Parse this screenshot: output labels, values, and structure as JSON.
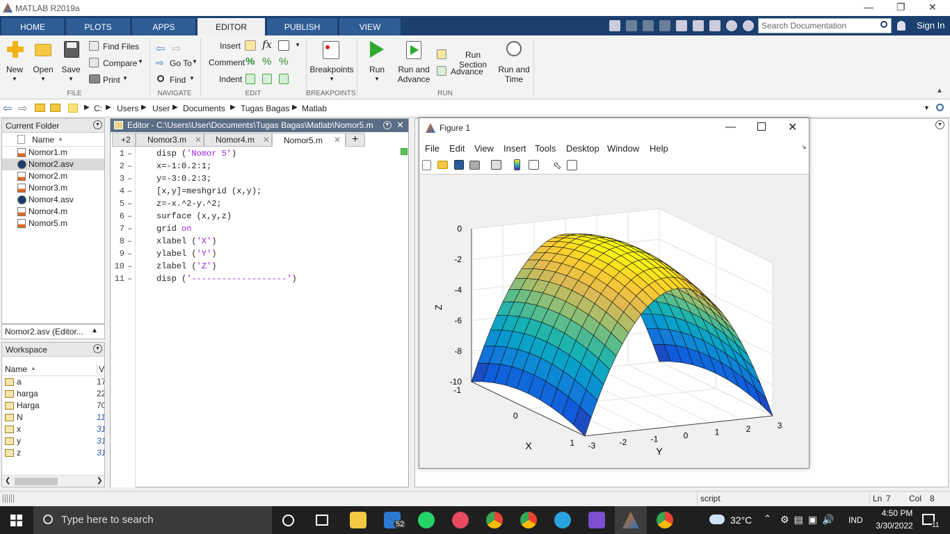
{
  "window": {
    "title": "MATLAB R2019a"
  },
  "ribbon": {
    "tabs": [
      "HOME",
      "PLOTS",
      "APPS",
      "EDITOR",
      "PUBLISH",
      "VIEW"
    ],
    "active_tab": "EDITOR",
    "search_placeholder": "Search Documentation",
    "sign_in": "Sign In",
    "file": {
      "new": "New",
      "open": "Open",
      "save": "Save",
      "find_files": "Find Files",
      "compare": "Compare",
      "print": "Print",
      "group": "FILE"
    },
    "navigate": {
      "go_to": "Go To",
      "find": "Find",
      "group": "NAVIGATE"
    },
    "edit": {
      "insert": "Insert",
      "comment": "Comment",
      "indent": "Indent",
      "group": "EDIT"
    },
    "breakpoints": {
      "label": "Breakpoints",
      "group": "BREAKPOINTS"
    },
    "run": {
      "run": "Run",
      "run_advance_1": "Run and",
      "run_advance_2": "Advance",
      "run_section": "Run Section",
      "advance": "Advance",
      "run_time_1": "Run and",
      "run_time_2": "Time",
      "group": "RUN"
    }
  },
  "address": {
    "path": [
      "C:",
      "Users",
      "User",
      "Documents",
      "Tugas Bagas",
      "Matlab"
    ]
  },
  "current_folder": {
    "title": "Current Folder",
    "col_name": "Name",
    "files": [
      "Nomor1.m",
      "Nomor2.asv",
      "Nomor2.m",
      "Nomor3.m",
      "Nomor4.asv",
      "Nomor4.m",
      "Nomor5.m"
    ],
    "selected": "Nomor2.asv",
    "details": "Nomor2.asv  (Editor..."
  },
  "workspace": {
    "title": "Workspace",
    "col_name": "Name",
    "col_value": "Va",
    "vars": [
      {
        "name": "a",
        "value": "17"
      },
      {
        "name": "harga",
        "value": "22"
      },
      {
        "name": "Harga",
        "value": "70"
      },
      {
        "name": "N",
        "value": "11"
      },
      {
        "name": "x",
        "value": "31"
      },
      {
        "name": "y",
        "value": "31"
      },
      {
        "name": "z",
        "value": "31"
      }
    ]
  },
  "editor": {
    "title": "Editor - C:\\Users\\User\\Documents\\Tugas Bagas\\Matlab\\Nomor5.m",
    "tab_overflow": "+2",
    "tabs": [
      "Nomor3.m",
      "Nomor4.m",
      "Nomor5.m"
    ],
    "active_tab": "Nomor5.m",
    "lines": [
      {
        "n": "1",
        "pre": "disp (",
        "str": "'Nomor 5'",
        "post": ")"
      },
      {
        "n": "2",
        "pre": "x=-1:0.2:1;",
        "str": "",
        "post": ""
      },
      {
        "n": "3",
        "pre": "y=-3:0.2:3;",
        "str": "",
        "post": ""
      },
      {
        "n": "4",
        "pre": "[x,y]=meshgrid (x,y);",
        "str": "",
        "post": ""
      },
      {
        "n": "5",
        "pre": "z=-x.^2-y.^2;",
        "str": "",
        "post": ""
      },
      {
        "n": "6",
        "pre": "surface (x,y,z)",
        "str": "",
        "post": ""
      },
      {
        "n": "7",
        "pre": "grid ",
        "str": "on",
        "post": ""
      },
      {
        "n": "8",
        "pre": "xlabel (",
        "str": "'X'",
        "post": ")"
      },
      {
        "n": "9",
        "pre": "ylabel (",
        "str": "'Y'",
        "post": ")"
      },
      {
        "n": "10",
        "pre": "zlabel (",
        "str": "'Z'",
        "post": ")"
      },
      {
        "n": "11",
        "pre": "disp (",
        "str": "'-------------------'",
        "post": ")"
      }
    ]
  },
  "figure": {
    "title": "Figure 1",
    "menu": [
      "File",
      "Edit",
      "View",
      "Insert",
      "Tools",
      "Desktop",
      "Window",
      "Help"
    ],
    "plot": {
      "zlabel": "Z",
      "xlabel": "X",
      "ylabel": "Y",
      "z_ticks": [
        "0",
        "-2",
        "-4",
        "-6",
        "-8",
        "-10"
      ],
      "x_ticks": [
        "-1",
        "0",
        "1"
      ],
      "y_ticks": [
        "-3",
        "-2",
        "-1",
        "0",
        "1",
        "2",
        "3"
      ]
    }
  },
  "chart_data": {
    "type": "surface",
    "title": "",
    "xlabel": "X",
    "ylabel": "Y",
    "zlabel": "Z",
    "x_range": [
      -1,
      1
    ],
    "x_step": 0.2,
    "y_range": [
      -3,
      3
    ],
    "y_step": 0.2,
    "z_range": [
      -10,
      0
    ],
    "function": "z=-x.^2-y.^2",
    "grid": true,
    "colormap": "parula"
  },
  "statusbar": {
    "mode": "script",
    "ln": "Ln",
    "ln_val": "7",
    "col": "Col",
    "col_val": "8"
  },
  "taskbar": {
    "search_placeholder": "Type here to search",
    "mail_badge": "52",
    "weather": "32°C",
    "lang": "IND",
    "time": "4:50 PM",
    "date": "3/30/2022",
    "notif_count": "11"
  }
}
